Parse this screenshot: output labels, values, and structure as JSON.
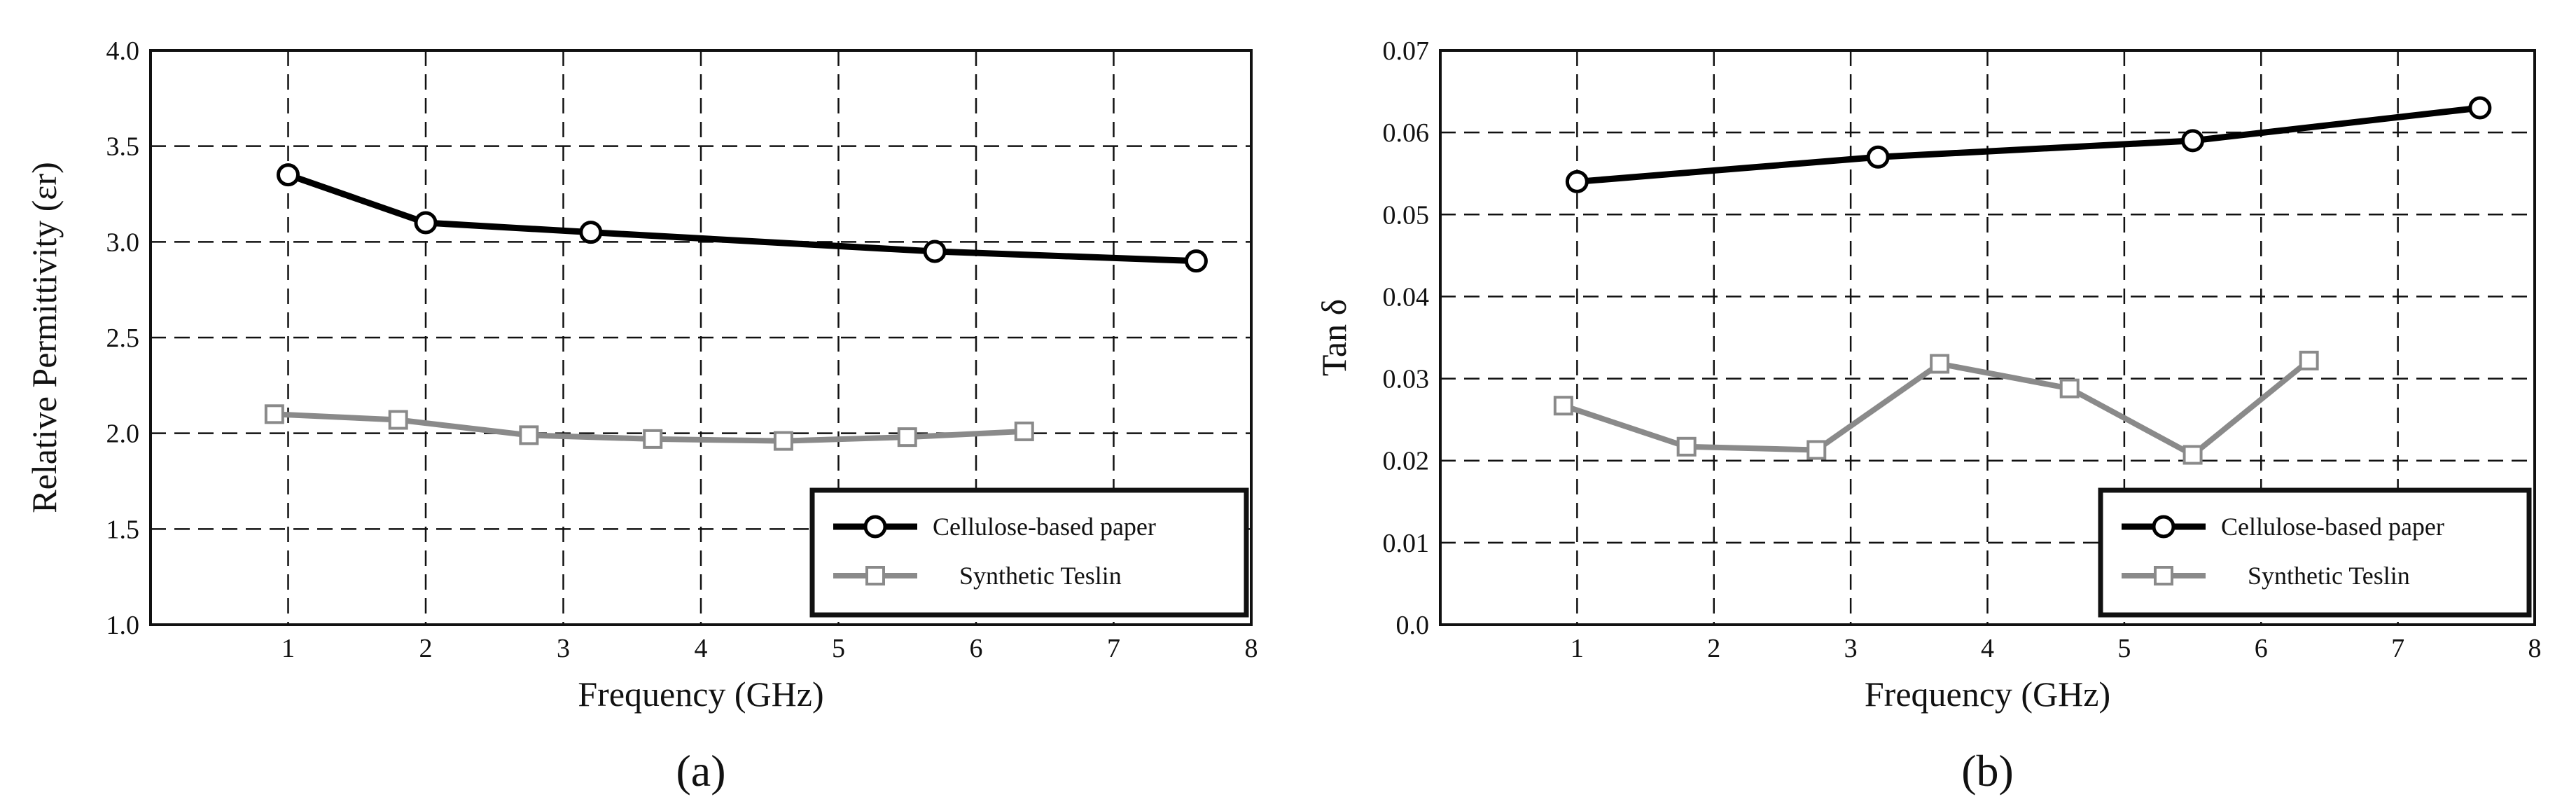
{
  "panels": [
    {
      "panel_label": "(a)",
      "chart_data": {
        "type": "line",
        "xlabel": "Frequency (GHz)",
        "ylabel": "Relative Permittivity (εr)",
        "xlim": [
          0,
          8
        ],
        "ylim": [
          1.0,
          4.0
        ],
        "xticks": [
          "1",
          "2",
          "3",
          "4",
          "5",
          "6",
          "7",
          "8"
        ],
        "yticks": [
          "1.0",
          "1.5",
          "2.0",
          "2.5",
          "3.0",
          "3.5",
          "4.0"
        ],
        "grid": true,
        "legend_position": "bottom-right",
        "series": [
          {
            "name": "Cellulose-based paper",
            "marker": "circle",
            "color": "#000000",
            "x": [
              1.0,
              2.0,
              3.2,
              5.7,
              7.6
            ],
            "y": [
              3.35,
              3.1,
              3.05,
              2.95,
              2.9
            ]
          },
          {
            "name": "Synthetic Teslin",
            "marker": "square",
            "color": "#8a8a8a",
            "x": [
              0.9,
              1.8,
              2.75,
              3.65,
              4.6,
              5.5,
              6.35
            ],
            "y": [
              2.1,
              2.07,
              1.99,
              1.97,
              1.96,
              1.98,
              2.01
            ]
          }
        ]
      }
    },
    {
      "panel_label": "(b)",
      "chart_data": {
        "type": "line",
        "xlabel": "Frequency (GHz)",
        "ylabel": "Tan δ",
        "xlim": [
          0,
          8
        ],
        "ylim": [
          0.0,
          0.07
        ],
        "xticks": [
          "1",
          "2",
          "3",
          "4",
          "5",
          "6",
          "7",
          "8"
        ],
        "yticks": [
          "0.0",
          "0.01",
          "0.02",
          "0.03",
          "0.04",
          "0.05",
          "0.06",
          "0.07"
        ],
        "grid": true,
        "legend_position": "bottom-right",
        "series": [
          {
            "name": "Cellulose-based paper",
            "marker": "circle",
            "color": "#000000",
            "x": [
              1.0,
              3.2,
              5.5,
              7.6
            ],
            "y": [
              0.054,
              0.057,
              0.059,
              0.063
            ]
          },
          {
            "name": "Synthetic Teslin",
            "marker": "square",
            "color": "#8a8a8a",
            "x": [
              0.9,
              1.8,
              2.75,
              3.65,
              4.6,
              5.5,
              6.35
            ],
            "y": [
              0.0267,
              0.0217,
              0.0213,
              0.0318,
              0.0288,
              0.0207,
              0.0322
            ]
          }
        ]
      }
    }
  ]
}
